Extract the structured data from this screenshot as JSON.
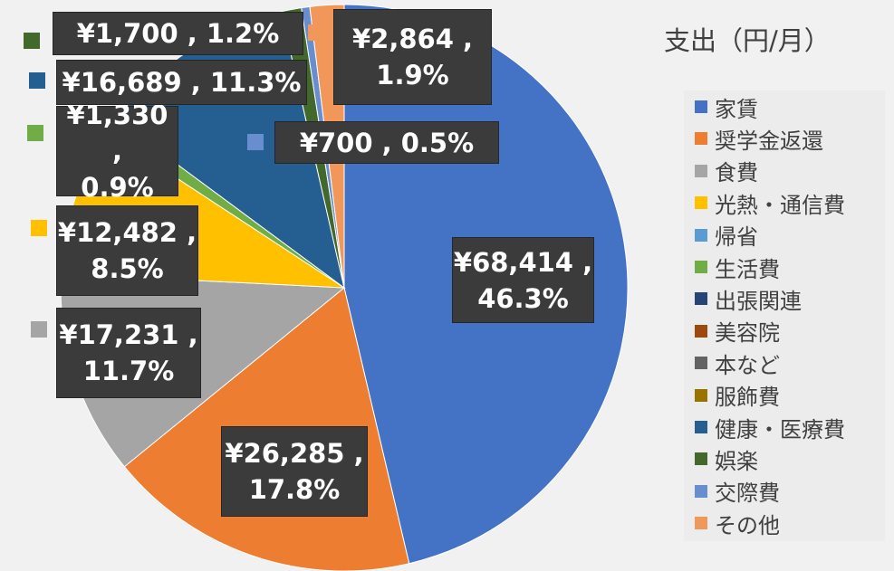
{
  "chart_data": {
    "type": "pie",
    "title": "支出（円/月）",
    "legend_position": "right",
    "slices": [
      {
        "name": "家賃",
        "value": 68414,
        "label": "¥68,414 ,\n46.3%",
        "color": "#4472c4"
      },
      {
        "name": "奨学金返還",
        "value": 26285,
        "label": "¥26,285 ,\n17.8%",
        "color": "#ed7d31"
      },
      {
        "name": "食費",
        "value": 17231,
        "label": "¥17,231 ,\n11.7%",
        "color": "#a5a5a5"
      },
      {
        "name": "光熱・通信費",
        "value": 12482,
        "label": "¥12,482 ,\n8.5%",
        "color": "#ffc000"
      },
      {
        "name": "帰省",
        "value": 0,
        "label": "",
        "color": "#5b9bd5"
      },
      {
        "name": "生活費",
        "value": 1330,
        "label": "¥1,330 ,\n0.9%",
        "color": "#70ad47"
      },
      {
        "name": "出張関連",
        "value": 0,
        "label": "",
        "color": "#264478"
      },
      {
        "name": "美容院",
        "value": 0,
        "label": "",
        "color": "#9e480e"
      },
      {
        "name": "本など",
        "value": 0,
        "label": "",
        "color": "#636363"
      },
      {
        "name": "服飾費",
        "value": 0,
        "label": "",
        "color": "#997300"
      },
      {
        "name": "健康・医療費",
        "value": 16689,
        "label": "¥16,689 , 11.3%",
        "color": "#255e91"
      },
      {
        "name": "娯楽",
        "value": 1700,
        "label": "¥1,700 , 1.2%",
        "color": "#43682b"
      },
      {
        "name": "交際費",
        "value": 700,
        "label": "¥700 , 0.5%",
        "color": "#698ed0"
      },
      {
        "name": "その他",
        "value": 2864,
        "label": "¥2,864 ,\n1.9%",
        "color": "#f1975a"
      }
    ]
  }
}
